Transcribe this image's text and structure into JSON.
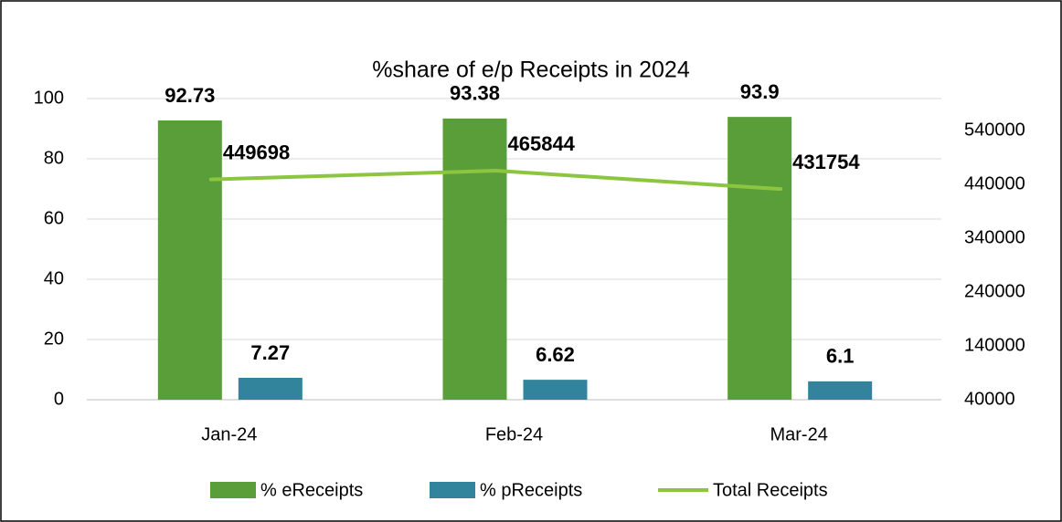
{
  "chart_data": {
    "type": "bar-line",
    "title": "%share of e/p Receipts in 2024",
    "categories": [
      "Jan-24",
      "Feb-24",
      "Mar-24"
    ],
    "series": [
      {
        "name": "% eReceipts",
        "color": "#5a9e3a",
        "type": "bar",
        "values": [
          92.73,
          93.38,
          93.9
        ]
      },
      {
        "name": "% pReceipts",
        "color": "#31849b",
        "type": "bar",
        "values": [
          7.27,
          6.62,
          6.1
        ]
      },
      {
        "name": "Total Receipts",
        "color": "#8cc640",
        "type": "line",
        "axis": "y2",
        "values": [
          449698,
          465844,
          431754
        ]
      }
    ],
    "ylim": [
      0,
      100
    ],
    "yticks": [
      0,
      20,
      40,
      60,
      80,
      100
    ],
    "y2lim": [
      40000,
      600000
    ],
    "y2ticks": [
      40000,
      140000,
      240000,
      340000,
      440000,
      540000
    ],
    "grid": true,
    "legend": "bottom"
  }
}
